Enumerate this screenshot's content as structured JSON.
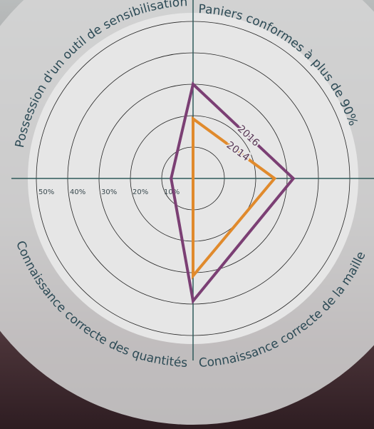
{
  "chart_data": {
    "type": "radar",
    "categories": [
      "Paniers conformes à plus de 90%",
      "Connaissance correcte de la maille",
      "Connaissance correcte des quantités",
      "Possession d'un outil de sensibilisation"
    ],
    "series": [
      {
        "name": "2016",
        "color": "#7b3f74",
        "values": [
          30,
          32,
          39,
          7
        ]
      },
      {
        "name": "2014",
        "color": "#e08a2c",
        "values": [
          19,
          26,
          31,
          0
        ]
      }
    ],
    "rlim": [
      0,
      50
    ],
    "rticks": [
      {
        "value": 10,
        "label": "10%"
      },
      {
        "value": 20,
        "label": "20%"
      },
      {
        "value": 30,
        "label": "30%"
      },
      {
        "value": 40,
        "label": "40%"
      },
      {
        "value": 50,
        "label": "50%"
      }
    ],
    "grid": true
  }
}
